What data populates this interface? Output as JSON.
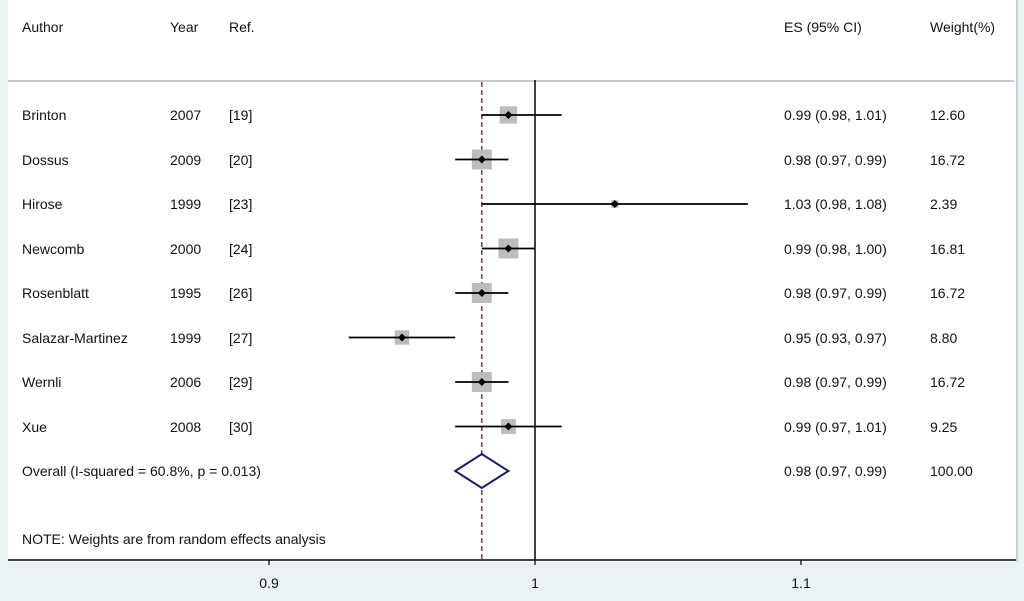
{
  "header": {
    "author": "Author",
    "year": "Year",
    "ref": "Ref.",
    "es": "ES (95% CI)",
    "weight": "Weight(%)"
  },
  "note": "NOTE: Weights are from random effects analysis",
  "colors": {
    "pooled_line": "#a02828",
    "diamond": "#1a1a6e",
    "weight_box": "#bdbdbd",
    "axis": "#000000"
  },
  "chart_data": {
    "type": "forest",
    "x_axis": {
      "ticks": [
        0.9,
        1,
        1.1
      ],
      "tick_labels": [
        "0.9",
        "1",
        "1.1"
      ],
      "null_value": 1
    },
    "studies": [
      {
        "author": "Brinton",
        "year": "2007",
        "ref": "[19]",
        "es": 0.99,
        "lower": 0.98,
        "upper": 1.01,
        "es_text": "0.99 (0.98, 1.01)",
        "weight": 12.6,
        "weight_text": "12.60"
      },
      {
        "author": "Dossus",
        "year": "2009",
        "ref": "[20]",
        "es": 0.98,
        "lower": 0.97,
        "upper": 0.99,
        "es_text": "0.98 (0.97, 0.99)",
        "weight": 16.72,
        "weight_text": "16.72"
      },
      {
        "author": "Hirose",
        "year": "1999",
        "ref": "[23]",
        "es": 1.03,
        "lower": 0.98,
        "upper": 1.08,
        "es_text": "1.03 (0.98, 1.08)",
        "weight": 2.39,
        "weight_text": "2.39"
      },
      {
        "author": "Newcomb",
        "year": "2000",
        "ref": "[24]",
        "es": 0.99,
        "lower": 0.98,
        "upper": 1.0,
        "es_text": "0.99 (0.98, 1.00)",
        "weight": 16.81,
        "weight_text": "16.81"
      },
      {
        "author": "Rosenblatt",
        "year": "1995",
        "ref": "[26]",
        "es": 0.98,
        "lower": 0.97,
        "upper": 0.99,
        "es_text": "0.98 (0.97, 0.99)",
        "weight": 16.72,
        "weight_text": "16.72"
      },
      {
        "author": "Salazar-Martinez",
        "year": "1999",
        "ref": "[27]",
        "es": 0.95,
        "lower": 0.93,
        "upper": 0.97,
        "es_text": "0.95 (0.93, 0.97)",
        "weight": 8.8,
        "weight_text": "8.80"
      },
      {
        "author": "Wernli",
        "year": "2006",
        "ref": "[29]",
        "es": 0.98,
        "lower": 0.97,
        "upper": 0.99,
        "es_text": "0.98 (0.97, 0.99)",
        "weight": 16.72,
        "weight_text": "16.72"
      },
      {
        "author": "Xue",
        "year": "2008",
        "ref": "[30]",
        "es": 0.99,
        "lower": 0.97,
        "upper": 1.01,
        "es_text": "0.99 (0.97, 1.01)",
        "weight": 9.25,
        "weight_text": "9.25"
      }
    ],
    "overall": {
      "label": "Overall  (I-squared = 60.8%, p = 0.013)",
      "es": 0.98,
      "lower": 0.97,
      "upper": 0.99,
      "es_text": "0.98 (0.97, 0.99)",
      "weight_text": "100.00"
    }
  }
}
